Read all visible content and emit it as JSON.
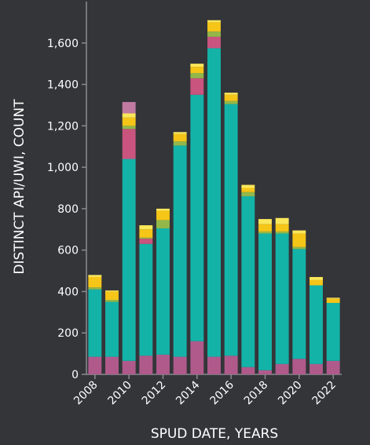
{
  "chart_data": {
    "type": "bar",
    "stacked": true,
    "title": "",
    "xlabel": "SPUD DATE, YEARS",
    "ylabel": "DISTINCT API/UWI, COUNT",
    "categories": [
      "2008",
      "2009",
      "2010",
      "2011",
      "2012",
      "2013",
      "2014",
      "2015",
      "2016",
      "2017",
      "2018",
      "2019",
      "2020",
      "2021",
      "2022"
    ],
    "x_tick_labels": [
      "2008",
      "2010",
      "2012",
      "2014",
      "2016",
      "2018",
      "2020",
      "2022"
    ],
    "y_tick_labels": [
      "0",
      "200",
      "400",
      "600",
      "800",
      "1,000",
      "1,200",
      "1,400",
      "1,600"
    ],
    "ylim": [
      0,
      1800
    ],
    "yticks": [
      0,
      200,
      400,
      600,
      800,
      1000,
      1200,
      1400,
      1600
    ],
    "grid": false,
    "legend": "none",
    "series": [
      {
        "color": "#b05a8c",
        "values": [
          85,
          85,
          65,
          90,
          95,
          85,
          160,
          85,
          90,
          35,
          20,
          50,
          75,
          50,
          65
        ]
      },
      {
        "color": "#14b3a8",
        "values": [
          325,
          265,
          975,
          540,
          610,
          1020,
          1190,
          1490,
          1215,
          825,
          660,
          630,
          530,
          380,
          280
        ]
      },
      {
        "color": "#c9557e",
        "values": [
          0,
          0,
          145,
          25,
          0,
          0,
          80,
          55,
          0,
          0,
          0,
          0,
          0,
          0,
          0
        ]
      },
      {
        "color": "#93b849",
        "values": [
          10,
          10,
          15,
          5,
          40,
          20,
          25,
          25,
          15,
          20,
          10,
          10,
          10,
          0,
          0
        ]
      },
      {
        "color": "#f5c518",
        "values": [
          50,
          40,
          40,
          40,
          45,
          35,
          30,
          45,
          30,
          20,
          35,
          35,
          65,
          25,
          20
        ]
      },
      {
        "color": "#fbe75a",
        "values": [
          10,
          5,
          20,
          20,
          10,
          10,
          15,
          10,
          10,
          15,
          25,
          30,
          15,
          15,
          5
        ]
      },
      {
        "color": "#c07aa2",
        "values": [
          0,
          0,
          55,
          0,
          0,
          0,
          0,
          0,
          0,
          0,
          0,
          0,
          0,
          0,
          0
        ]
      }
    ],
    "colors": {
      "background": "#343539",
      "axis": "#8a8b8f",
      "text": "#ffffff"
    }
  }
}
